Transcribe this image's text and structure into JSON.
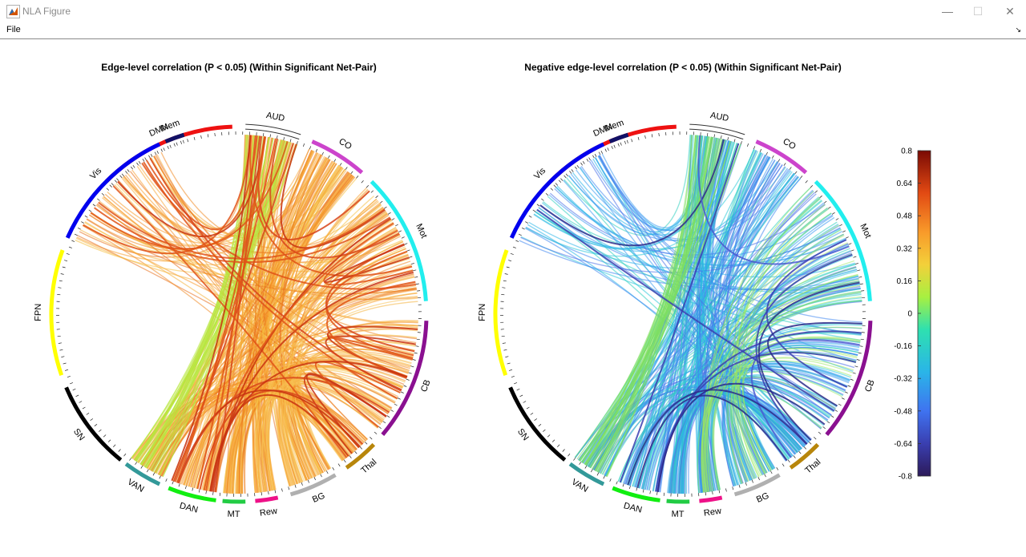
{
  "window": {
    "title": "NLA Figure",
    "menu_file": "File",
    "minimize_glyph": "—",
    "maximize_glyph": "☐",
    "close_glyph": "✕",
    "menu_arrow_glyph": "↘"
  },
  "networks": [
    {
      "name": "DMN",
      "color": "#ee1111"
    },
    {
      "name": "AUD",
      "color": "#ffffff"
    },
    {
      "name": "CO",
      "color": "#cc44cc"
    },
    {
      "name": "Mot",
      "color": "#22eeee"
    },
    {
      "name": "CB",
      "color": "#8a1090"
    },
    {
      "name": "Thal",
      "color": "#b8860b"
    },
    {
      "name": "BG",
      "color": "#b0b0b0"
    },
    {
      "name": "Rew",
      "color": "#ee1188"
    },
    {
      "name": "MT",
      "color": "#22cc44"
    },
    {
      "name": "DAN",
      "color": "#11ee11"
    },
    {
      "name": "VAN",
      "color": "#339999"
    },
    {
      "name": "SN",
      "color": "#000000"
    },
    {
      "name": "FPN",
      "color": "#ffff00"
    },
    {
      "name": "Vis",
      "color": "#0000ee"
    },
    {
      "name": "Mem",
      "color": "#111166"
    }
  ],
  "plots": [
    {
      "title": "Edge-level correlation (P < 0.05) (Within Significant Net-Pair)",
      "mode": "positive"
    },
    {
      "title": "Negative edge-level correlation (P < 0.05) (Within Significant Net-Pair)",
      "mode": "negative"
    }
  ],
  "colorbar": {
    "ticks": [
      "0.8",
      "0.64",
      "0.48",
      "0.32",
      "0.16",
      "0",
      "-0.16",
      "-0.32",
      "-0.48",
      "-0.64",
      "-0.8"
    ],
    "min": -0.8,
    "max": 0.8
  }
}
